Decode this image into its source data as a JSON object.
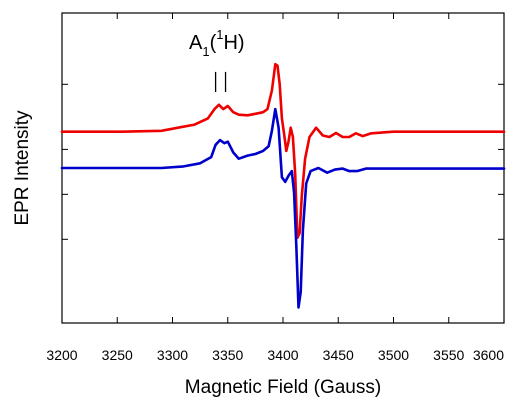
{
  "chart_data": {
    "type": "line",
    "xlabel": "Magnetic Field (Gauss)",
    "ylabel": "EPR Intensity",
    "xlim": [
      3200,
      3600
    ],
    "ylim": [
      0,
      1
    ],
    "x_ticks": [
      3200,
      3250,
      3300,
      3350,
      3400,
      3450,
      3500,
      3550,
      3600
    ],
    "y_tick_labels": "none",
    "y_minor_ticks": [
      0.77,
      0.56,
      0.415,
      0.27
    ],
    "grid": false,
    "legend": "none",
    "annotation": {
      "parts": [
        "A",
        "1",
        "(",
        "1",
        "H)"
      ],
      "marker_x": [
        3339,
        3348
      ],
      "marker_y": [
        0.745,
        0.81
      ]
    },
    "series": [
      {
        "color": "#ee0000",
        "baseline": 0.617,
        "points": [
          [
            3200,
            0.617
          ],
          [
            3255,
            0.617
          ],
          [
            3290,
            0.62
          ],
          [
            3305,
            0.63
          ],
          [
            3320,
            0.64
          ],
          [
            3332,
            0.66
          ],
          [
            3338,
            0.69
          ],
          [
            3342,
            0.704
          ],
          [
            3346,
            0.69
          ],
          [
            3350,
            0.7
          ],
          [
            3355,
            0.68
          ],
          [
            3360,
            0.672
          ],
          [
            3368,
            0.67
          ],
          [
            3375,
            0.675
          ],
          [
            3382,
            0.68
          ],
          [
            3386,
            0.69
          ],
          [
            3390,
            0.75
          ],
          [
            3393,
            0.835
          ],
          [
            3395,
            0.83
          ],
          [
            3397,
            0.77
          ],
          [
            3399,
            0.66
          ],
          [
            3401,
            0.61
          ],
          [
            3403,
            0.555
          ],
          [
            3405,
            0.585
          ],
          [
            3407,
            0.63
          ],
          [
            3409,
            0.6
          ],
          [
            3411,
            0.48
          ],
          [
            3413,
            0.275
          ],
          [
            3415,
            0.29
          ],
          [
            3417,
            0.41
          ],
          [
            3420,
            0.53
          ],
          [
            3424,
            0.6
          ],
          [
            3430,
            0.63
          ],
          [
            3436,
            0.605
          ],
          [
            3442,
            0.6
          ],
          [
            3448,
            0.613
          ],
          [
            3454,
            0.6
          ],
          [
            3460,
            0.6
          ],
          [
            3466,
            0.612
          ],
          [
            3472,
            0.603
          ],
          [
            3480,
            0.612
          ],
          [
            3500,
            0.617
          ],
          [
            3560,
            0.617
          ],
          [
            3600,
            0.617
          ]
        ]
      },
      {
        "color": "#0000cc",
        "baseline": 0.498,
        "points": [
          [
            3200,
            0.5
          ],
          [
            3250,
            0.5
          ],
          [
            3290,
            0.5
          ],
          [
            3310,
            0.505
          ],
          [
            3325,
            0.515
          ],
          [
            3335,
            0.535
          ],
          [
            3339,
            0.575
          ],
          [
            3343,
            0.59
          ],
          [
            3347,
            0.58
          ],
          [
            3350,
            0.585
          ],
          [
            3355,
            0.55
          ],
          [
            3360,
            0.53
          ],
          [
            3368,
            0.54
          ],
          [
            3375,
            0.545
          ],
          [
            3382,
            0.555
          ],
          [
            3387,
            0.57
          ],
          [
            3390,
            0.62
          ],
          [
            3393,
            0.69
          ],
          [
            3396,
            0.63
          ],
          [
            3399,
            0.47
          ],
          [
            3402,
            0.455
          ],
          [
            3405,
            0.475
          ],
          [
            3408,
            0.49
          ],
          [
            3410,
            0.42
          ],
          [
            3412,
            0.25
          ],
          [
            3414,
            0.05
          ],
          [
            3416,
            0.1
          ],
          [
            3418,
            0.3
          ],
          [
            3421,
            0.45
          ],
          [
            3425,
            0.49
          ],
          [
            3432,
            0.5
          ],
          [
            3440,
            0.485
          ],
          [
            3447,
            0.495
          ],
          [
            3454,
            0.498
          ],
          [
            3460,
            0.49
          ],
          [
            3467,
            0.49
          ],
          [
            3475,
            0.498
          ],
          [
            3500,
            0.498
          ],
          [
            3600,
            0.498
          ]
        ]
      }
    ]
  }
}
